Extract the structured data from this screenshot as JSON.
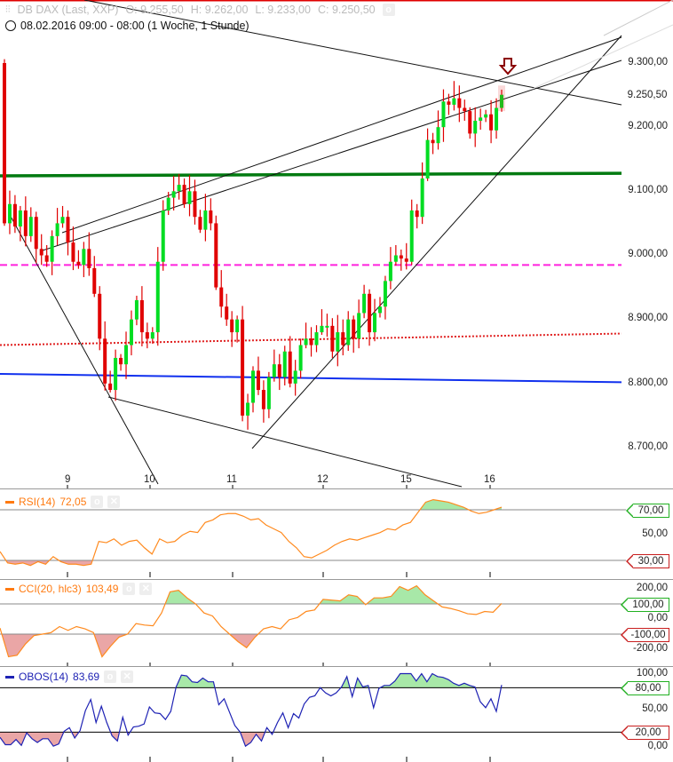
{
  "header": {
    "instrument": "DB DAX (Last, XXP)",
    "open": "O: 9.255,50",
    "high": "H: 9.262,00",
    "low": "L: 9.233,00",
    "close": "C: 9.250,50",
    "period": "08.02.2016 09:00 - 08:00 (1 Woche, 1 Stunde)"
  },
  "price_axis": [
    "9.300,00",
    "9.200,00",
    "9.100,00",
    "9.000,00",
    "8.900,00",
    "8.800,00",
    "8.700,00"
  ],
  "current_price": "9.250,50",
  "days": [
    "9",
    "10",
    "11",
    "12",
    "15",
    "16"
  ],
  "colors": {
    "up": "#00dd22",
    "down": "#e00000",
    "rsi": "#ff8a1e",
    "cci": "#ff8a1e",
    "obos": "#1e22b4",
    "overbought_fill": "#a8e8a8",
    "oversold_fill": "#eaa6a6"
  },
  "indicators": {
    "rsi": {
      "label": "RSI(14)",
      "value": "72,05",
      "axis": [
        "70,00",
        "50,00",
        "30,00"
      ]
    },
    "cci": {
      "label": "CCI(20, hlc3)",
      "value": "103,49",
      "axis": [
        "200,00",
        "100,00",
        "0,00",
        "-100,00",
        "-200,00"
      ]
    },
    "obos": {
      "label": "OBOS(14)",
      "value": "83,69",
      "axis": [
        "100,00",
        "80,00",
        "50,00",
        "20,00",
        "0,00"
      ]
    }
  },
  "chart_data": [
    {
      "type": "candlestick",
      "title": "DB DAX (Last, XXP)",
      "x_labels": [
        "9",
        "10",
        "11",
        "12",
        "15",
        "16"
      ],
      "ylim": [
        8650,
        9350
      ],
      "first_open": 9300,
      "close": [
        9050,
        9080,
        9045,
        9070,
        9030,
        9060,
        9010,
        9000,
        8990,
        9030,
        9050,
        9060,
        9020,
        8990,
        8985,
        9010,
        8980,
        8940,
        8870,
        8800,
        8790,
        8840,
        8830,
        8860,
        8900,
        8930,
        8880,
        8870,
        8880,
        8990,
        9070,
        9090,
        9100,
        9110,
        9080,
        9100,
        9060,
        9040,
        9070,
        9050,
        8950,
        8920,
        8900,
        8880,
        8900,
        8750,
        8770,
        8820,
        8790,
        8760,
        8810,
        8830,
        8810,
        8850,
        8800,
        8820,
        8860,
        8870,
        8860,
        8880,
        8890,
        8890,
        8850,
        8880,
        8860,
        8900,
        8870,
        8910,
        8940,
        8880,
        8910,
        8920,
        8960,
        8990,
        9000,
        8995,
        8990,
        9070,
        9060,
        9120,
        9180,
        9175,
        9200,
        9240,
        9235,
        9245,
        9230,
        9225,
        9190,
        9210,
        9215,
        9220,
        9195,
        9230,
        9250.5
      ],
      "levels": [
        {
          "color": "#007a10",
          "style": "solid",
          "from": 9124,
          "to": 9128
        },
        {
          "color": "#ff22dd",
          "style": "dashed",
          "from": 8985,
          "to": 8985
        },
        {
          "color": "#e02020",
          "style": "dotted",
          "from": 8860,
          "to": 8878
        },
        {
          "color": "#1030ee",
          "style": "solid",
          "from": 8815,
          "to": 8802
        }
      ]
    },
    {
      "type": "line",
      "name": "RSI(14)",
      "ylim": [
        20,
        80
      ],
      "bands": [
        30,
        70
      ],
      "values": [
        37,
        28,
        27,
        28,
        26,
        29,
        27,
        33,
        29,
        27,
        27,
        26,
        27,
        45,
        44,
        47,
        42,
        45,
        46,
        40,
        35,
        47,
        44,
        45,
        50,
        53,
        52,
        60,
        62,
        66,
        67,
        67,
        65,
        62,
        63,
        58,
        55,
        52,
        45,
        40,
        33,
        32,
        35,
        38,
        42,
        45,
        47,
        46,
        48,
        50,
        52,
        55,
        54,
        58,
        60,
        68,
        76,
        78,
        77,
        76,
        74,
        72,
        69,
        67,
        68,
        70,
        72.05
      ]
    },
    {
      "type": "line",
      "name": "CCI(20, hlc3)",
      "ylim": [
        -250,
        260
      ],
      "bands": [
        -100,
        100
      ],
      "values": [
        -60,
        -250,
        -240,
        -165,
        -110,
        -100,
        -90,
        -50,
        -75,
        -50,
        -65,
        -90,
        -250,
        -180,
        -120,
        -100,
        -30,
        -40,
        -45,
        40,
        180,
        190,
        140,
        100,
        40,
        20,
        -50,
        -100,
        -150,
        -190,
        -120,
        -65,
        -50,
        -65,
        -5,
        10,
        50,
        60,
        130,
        125,
        120,
        160,
        150,
        95,
        140,
        140,
        150,
        215,
        190,
        220,
        160,
        120,
        80,
        70,
        55,
        35,
        30,
        50,
        45,
        103.49
      ]
    },
    {
      "type": "line",
      "name": "OBOS(14)",
      "ylim": [
        -3,
        108
      ],
      "bands": [
        20,
        80
      ],
      "values": [
        13,
        3,
        3,
        10,
        2,
        19,
        11,
        6,
        11,
        11,
        1,
        4,
        21,
        26,
        12,
        22,
        49,
        64,
        33,
        55,
        33,
        15,
        8,
        40,
        16,
        27,
        28,
        31,
        54,
        46,
        45,
        37,
        48,
        81,
        97,
        96,
        88,
        87,
        93,
        88,
        88,
        57,
        65,
        47,
        29,
        20,
        1,
        6,
        17,
        8,
        26,
        17,
        33,
        46,
        26,
        45,
        39,
        58,
        67,
        69,
        80,
        73,
        69,
        73,
        81,
        95,
        68,
        93,
        81,
        83,
        53,
        79,
        83,
        83,
        89,
        99,
        99,
        99,
        89,
        99,
        88,
        99,
        95,
        94,
        91,
        86,
        83,
        86,
        83,
        81,
        61,
        53,
        65,
        48,
        83.69
      ]
    }
  ]
}
